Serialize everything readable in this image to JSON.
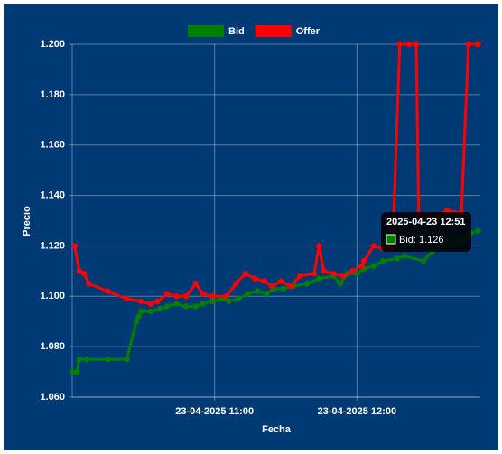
{
  "chart_data": {
    "type": "line",
    "x_label": "Fecha",
    "y_label": "Precio",
    "x": [
      "2025-04-23 10:00",
      "2025-04-23 10:01",
      "2025-04-23 10:02",
      "2025-04-23 10:03",
      "2025-04-23 10:05",
      "2025-04-23 10:06",
      "2025-04-23 10:07",
      "2025-04-23 10:15",
      "2025-04-23 10:23",
      "2025-04-23 10:27",
      "2025-04-23 10:28",
      "2025-04-23 10:29",
      "2025-04-23 10:33",
      "2025-04-23 10:36",
      "2025-04-23 10:37",
      "2025-04-23 10:40",
      "2025-04-23 10:44",
      "2025-04-23 10:48",
      "2025-04-23 10:52",
      "2025-04-23 10:55",
      "2025-04-23 10:59",
      "2025-04-23 11:03",
      "2025-04-23 11:05",
      "2025-04-23 11:06",
      "2025-04-23 11:09",
      "2025-04-23 11:10",
      "2025-04-23 11:13",
      "2025-04-23 11:14",
      "2025-04-23 11:17",
      "2025-04-23 11:18",
      "2025-04-23 11:21",
      "2025-04-23 11:22",
      "2025-04-23 11:24",
      "2025-04-23 11:25",
      "2025-04-23 11:28",
      "2025-04-23 11:29",
      "2025-04-23 11:32",
      "2025-04-23 11:33",
      "2025-04-23 11:36",
      "2025-04-23 11:39",
      "2025-04-23 11:42",
      "2025-04-23 11:44",
      "2025-04-23 11:46",
      "2025-04-23 11:50",
      "2025-04-23 11:53",
      "2025-04-23 11:54",
      "2025-04-23 11:56",
      "2025-04-23 11:58",
      "2025-04-23 12:00",
      "2025-04-23 12:02",
      "2025-04-23 12:03",
      "2025-04-23 12:07",
      "2025-04-23 12:11",
      "2025-04-23 12:13",
      "2025-04-23 12:15",
      "2025-04-23 12:17",
      "2025-04-23 12:18",
      "2025-04-23 12:20",
      "2025-04-23 12:22",
      "2025-04-23 12:25",
      "2025-04-23 12:26",
      "2025-04-23 12:28",
      "2025-04-23 12:32",
      "2025-04-23 12:36",
      "2025-04-23 12:38",
      "2025-04-23 12:40",
      "2025-04-23 12:44",
      "2025-04-23 12:47",
      "2025-04-23 12:48",
      "2025-04-23 12:51"
    ],
    "series": [
      {
        "name": "Bid",
        "color": "#008000",
        "values": [
          1.07,
          null,
          1.07,
          1.075,
          null,
          1.075,
          null,
          1.075,
          1.075,
          1.09,
          1.092,
          1.094,
          1.094,
          null,
          1.095,
          1.096,
          1.097,
          1.096,
          1.096,
          1.097,
          1.098,
          1.099,
          null,
          1.098,
          null,
          1.099,
          null,
          1.101,
          null,
          1.102,
          null,
          1.101,
          null,
          1.103,
          null,
          1.103,
          null,
          1.104,
          null,
          1.105,
          null,
          1.107,
          null,
          1.108,
          1.105,
          null,
          1.109,
          null,
          1.109,
          null,
          1.111,
          1.112,
          1.114,
          null,
          null,
          1.115,
          null,
          1.116,
          null,
          null,
          null,
          1.114,
          1.118,
          1.12,
          null,
          1.121,
          1.122,
          null,
          1.125,
          1.126
        ]
      },
      {
        "name": "Offer",
        "color": "#ff0000",
        "values": [
          null,
          1.12,
          null,
          1.11,
          1.109,
          null,
          1.105,
          1.102,
          1.099,
          null,
          null,
          1.098,
          1.097,
          1.098,
          null,
          1.101,
          1.1,
          1.1,
          1.105,
          1.101,
          1.1,
          null,
          1.1,
          null,
          1.105,
          null,
          1.109,
          null,
          1.107,
          null,
          1.106,
          null,
          1.104,
          null,
          1.106,
          null,
          1.104,
          null,
          1.108,
          null,
          1.109,
          1.12,
          1.11,
          1.109,
          null,
          1.108,
          null,
          1.11,
          null,
          1.112,
          1.114,
          1.12,
          1.119,
          1.119,
          1.119,
          null,
          1.2,
          null,
          1.2,
          1.2,
          1.132,
          null,
          1.131,
          null,
          1.134,
          null,
          1.133,
          1.2,
          null,
          1.2
        ]
      }
    ],
    "xlim": [
      "2025-04-23 10:00",
      "2025-04-23 12:52"
    ],
    "xticks": [
      {
        "value": "2025-04-23 11:00",
        "label": "23-04-2025 11:00"
      },
      {
        "value": "2025-04-23 12:00",
        "label": "23-04-2025 12:00"
      }
    ],
    "ylim": [
      1.06,
      1.2
    ],
    "yticks": [
      {
        "value": 1.06,
        "label": "1.060"
      },
      {
        "value": 1.08,
        "label": "1.080"
      },
      {
        "value": 1.1,
        "label": "1.100"
      },
      {
        "value": 1.12,
        "label": "1.120"
      },
      {
        "value": 1.14,
        "label": "1.140"
      },
      {
        "value": 1.16,
        "label": "1.160"
      },
      {
        "value": 1.18,
        "label": "1.180"
      },
      {
        "value": 1.2,
        "label": "1.200"
      }
    ],
    "grid": true,
    "legend": "top",
    "tooltip": {
      "title": "2025-04-23 12:51",
      "label": "Bid: 1.126"
    }
  }
}
